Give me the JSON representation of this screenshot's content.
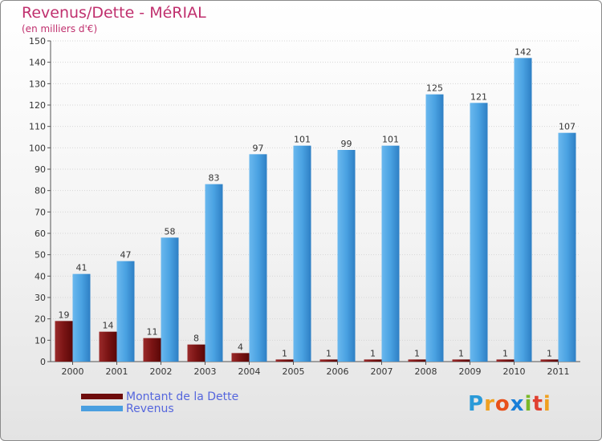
{
  "title": "Revenus/Dette - MéRIAL",
  "subtitle": "(en milliers d'€)",
  "chart_data": {
    "type": "bar",
    "title": "Revenus/Dette - MéRIAL",
    "ylabel": "(en milliers d'€)",
    "xlabel": "",
    "ylim": [
      0,
      150
    ],
    "yticks": [
      0,
      10,
      20,
      30,
      40,
      50,
      60,
      70,
      80,
      90,
      100,
      110,
      120,
      130,
      140,
      150
    ],
    "grid": true,
    "categories": [
      "2000",
      "2001",
      "2002",
      "2003",
      "2004",
      "2005",
      "2006",
      "2007",
      "2008",
      "2009",
      "2010",
      "2011"
    ],
    "series": [
      {
        "name": "Montant de la Dette",
        "color": "#7a1010",
        "values": [
          19,
          14,
          11,
          8,
          4,
          1,
          1,
          1,
          1,
          1,
          1,
          1
        ]
      },
      {
        "name": "Revenus",
        "color": "#4a9fe0",
        "values": [
          41,
          47,
          58,
          83,
          97,
          101,
          99,
          101,
          125,
          121,
          142,
          107
        ]
      }
    ],
    "legend": "bottom-left"
  },
  "legend": {
    "items": [
      {
        "label": "Montant de la Dette",
        "color": "#6e0c0c"
      },
      {
        "label": "Revenus",
        "color": "#4a9fe0"
      }
    ]
  },
  "logo": {
    "letters": [
      "P",
      "r",
      "o",
      "x",
      "i",
      "t",
      "i"
    ],
    "colors": [
      "#2a9ad8",
      "#f0a020",
      "#e8501a",
      "#1a7fd8",
      "#7ab828",
      "#e04030",
      "#f0a020"
    ]
  }
}
